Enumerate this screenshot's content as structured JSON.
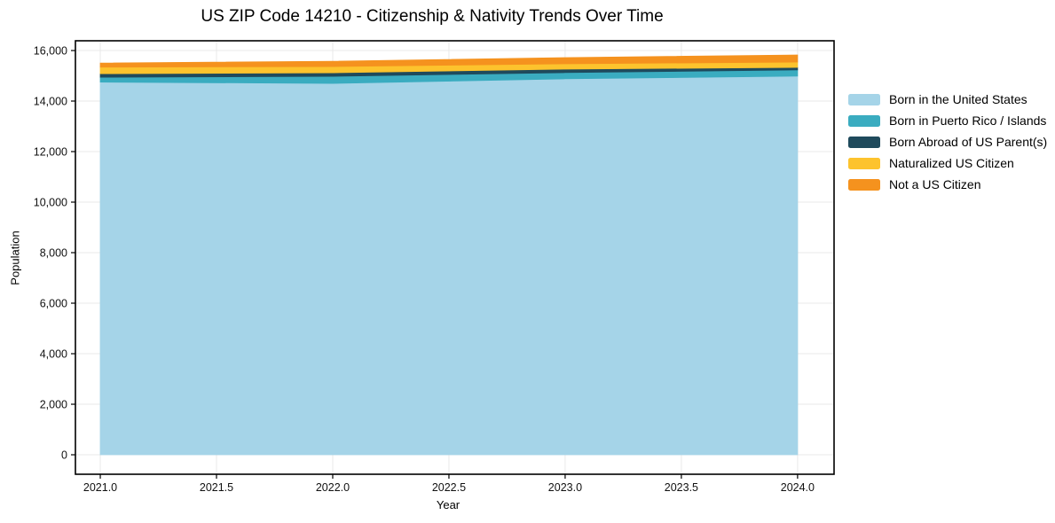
{
  "chart_data": {
    "type": "area",
    "stacked": true,
    "title": "US ZIP Code 14210 - Citizenship & Nativity Trends Over Time",
    "xlabel": "Year",
    "ylabel": "Population",
    "x": [
      2021,
      2022,
      2023,
      2024
    ],
    "series": [
      {
        "name": "Born in the United States",
        "color": "#a5d4e8",
        "values": [
          14750,
          14700,
          14880,
          14985
        ]
      },
      {
        "name": "Born in Puerto Rico / Islands",
        "color": "#3aacc0",
        "values": [
          195,
          280,
          245,
          245
        ]
      },
      {
        "name": "Born Abroad of US Parent(s)",
        "color": "#1f4a5c",
        "values": [
          140,
          140,
          140,
          105
        ]
      },
      {
        "name": "Naturalized US Citizen",
        "color": "#fdc32d",
        "values": [
          260,
          245,
          210,
          210
        ]
      },
      {
        "name": "Not a US Citizen",
        "color": "#f5921e",
        "values": [
          160,
          210,
          245,
          280
        ]
      }
    ],
    "x_ticks": {
      "values": [
        2021.0,
        2021.5,
        2022.0,
        2022.5,
        2023.0,
        2023.5,
        2024.0
      ],
      "labels": [
        "2021.0",
        "2021.5",
        "2022.0",
        "2022.5",
        "2023.0",
        "2023.5",
        "2024.0"
      ]
    },
    "y_ticks": {
      "values": [
        0,
        2000,
        4000,
        6000,
        8000,
        10000,
        12000,
        14000,
        16000
      ],
      "labels": [
        "0",
        "2,000",
        "4,000",
        "6,000",
        "8,000",
        "10,000",
        "12,000",
        "14,000",
        "16,000"
      ]
    },
    "xlim": [
      2020.893,
      2024.157
    ],
    "ylim": [
      -771,
      16386
    ],
    "grid": true,
    "grid_color": "#e9e9e9",
    "spine_color": "#000000",
    "legend_position": "right"
  }
}
